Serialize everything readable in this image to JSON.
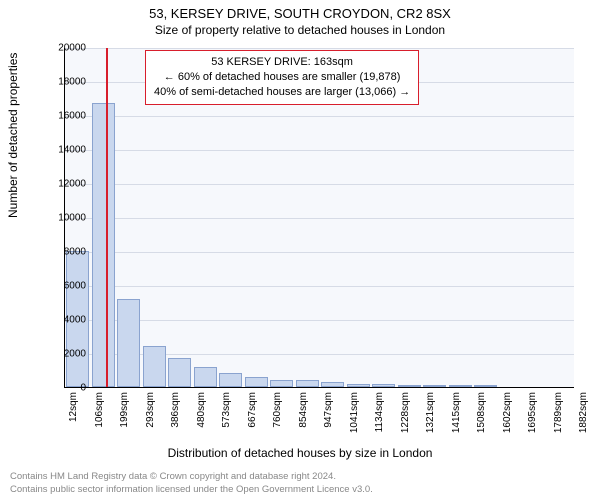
{
  "title": "53, KERSEY DRIVE, SOUTH CROYDON, CR2 8SX",
  "subtitle": "Size of property relative to detached houses in London",
  "ylabel": "Number of detached properties",
  "xlabel": "Distribution of detached houses by size in London",
  "footer_line1": "Contains HM Land Registry data © Crown copyright and database right 2024.",
  "footer_line2": "Contains public sector information licensed under the Open Government Licence v3.0.",
  "chart": {
    "type": "histogram",
    "background_color": "#f6f8fc",
    "grid_color": "#d6dbe6",
    "bar_fill": "#c9d7ee",
    "bar_border": "#8aa3cf",
    "marker_color": "#d81e2c",
    "ymax": 20000,
    "ytick_step": 2000,
    "yticks": [
      "0",
      "2000",
      "4000",
      "6000",
      "8000",
      "10000",
      "12000",
      "14000",
      "16000",
      "18000",
      "20000"
    ],
    "xticks": [
      "12sqm",
      "106sqm",
      "199sqm",
      "293sqm",
      "386sqm",
      "480sqm",
      "573sqm",
      "667sqm",
      "760sqm",
      "854sqm",
      "947sqm",
      "1041sqm",
      "1134sqm",
      "1228sqm",
      "1321sqm",
      "1415sqm",
      "1508sqm",
      "1602sqm",
      "1695sqm",
      "1789sqm",
      "1882sqm"
    ],
    "xmin": 12,
    "xmax": 1882,
    "marker_x": 163,
    "values": [
      8000,
      16700,
      5200,
      2400,
      1700,
      1200,
      800,
      600,
      400,
      400,
      300,
      200,
      200,
      100,
      100,
      100,
      100,
      0,
      0,
      0
    ],
    "annot": {
      "line1": "53 KERSEY DRIVE: 163sqm",
      "line2": "← 60% of detached houses are smaller (19,878)",
      "line3": "40% of semi-detached houses are larger (13,066) →"
    }
  }
}
